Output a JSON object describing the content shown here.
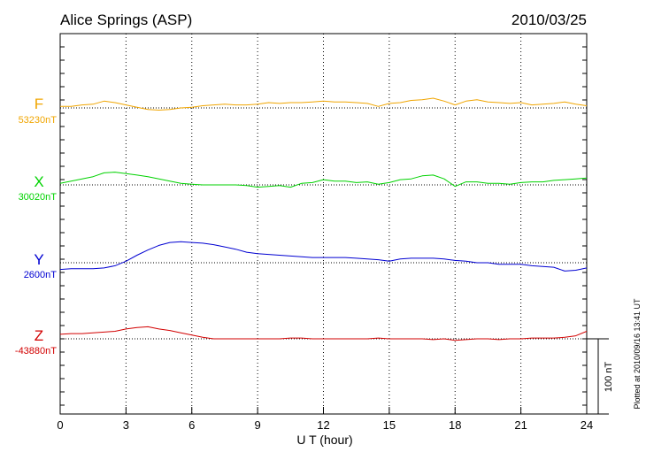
{
  "header": {
    "station": "Alice Springs (ASP)",
    "date": "2010/03/25"
  },
  "footer": {
    "plotted_note": "Plotted at 2010/09/16 13:41 UT"
  },
  "scale_bar": {
    "label": "100 nT",
    "value_nT": 100
  },
  "colors": {
    "F": "#f0a500",
    "X": "#00d200",
    "Y": "#0000d2",
    "Z": "#d20000",
    "frame": "#000000",
    "grid": "#000000"
  },
  "chart_data": {
    "type": "line",
    "title": "Alice Springs (ASP)",
    "xlabel": "U T (hour)",
    "ylabel": "",
    "xlim": [
      0,
      24
    ],
    "xticks": [
      0,
      3,
      6,
      9,
      12,
      15,
      18,
      21,
      24
    ],
    "xtick_labels": [
      "0",
      "3",
      "6",
      "9",
      "12",
      "15",
      "18",
      "21",
      "24"
    ],
    "ylim_nT_per_panel": [
      -100,
      100
    ],
    "grid": true,
    "legend": "left",
    "series": [
      {
        "name": "F",
        "baseline_label": "53230nT",
        "baseline_nT": 53230,
        "x": [
          0,
          0.5,
          1,
          1.5,
          2,
          2.5,
          3,
          3.5,
          4,
          4.5,
          5,
          5.5,
          6,
          6.5,
          7,
          7.5,
          8,
          8.5,
          9,
          9.5,
          10,
          10.5,
          11,
          11.5,
          12,
          12.5,
          13,
          13.5,
          14,
          14.5,
          15,
          15.5,
          16,
          16.5,
          17,
          17.5,
          18,
          18.5,
          19,
          19.5,
          20,
          20.5,
          21,
          21.5,
          22,
          22.5,
          23,
          23.5,
          24
        ],
        "values": [
          2,
          2,
          4,
          5,
          9,
          7,
          4,
          1,
          -2,
          -3,
          -2,
          0,
          1,
          3,
          4,
          5,
          4,
          4,
          5,
          7,
          6,
          7,
          7,
          8,
          9,
          8,
          8,
          7,
          6,
          2,
          6,
          7,
          10,
          11,
          13,
          9,
          4,
          9,
          11,
          8,
          7,
          6,
          7,
          4,
          5,
          6,
          8,
          5,
          3
        ]
      },
      {
        "name": "X",
        "baseline_label": "30020nT",
        "baseline_nT": 30020,
        "x": [
          0,
          0.5,
          1,
          1.5,
          2,
          2.5,
          3,
          3.5,
          4,
          4.5,
          5,
          5.5,
          6,
          6.5,
          7,
          7.5,
          8,
          8.5,
          9,
          9.5,
          10,
          10.5,
          11,
          11.5,
          12,
          12.5,
          13,
          13.5,
          14,
          14.5,
          15,
          15.5,
          16,
          16.5,
          17,
          17.5,
          18,
          18.5,
          19,
          19.5,
          20,
          20.5,
          21,
          21.5,
          22,
          22.5,
          23,
          23.5,
          24
        ],
        "values": [
          2,
          5,
          8,
          11,
          16,
          17,
          15,
          13,
          11,
          8,
          5,
          2,
          1,
          0,
          0,
          0,
          0,
          -1,
          -3,
          -2,
          -1,
          -3,
          2,
          3,
          7,
          5,
          5,
          3,
          4,
          1,
          3,
          7,
          8,
          12,
          13,
          8,
          -2,
          4,
          4,
          2,
          2,
          1,
          3,
          4,
          4,
          6,
          7,
          8,
          9
        ]
      },
      {
        "name": "Y",
        "baseline_label": "2600nT",
        "baseline_nT": 2600,
        "x": [
          0,
          0.5,
          1,
          1.5,
          2,
          2.5,
          3,
          3.5,
          4,
          4.5,
          5,
          5.5,
          6,
          6.5,
          7,
          7.5,
          8,
          8.5,
          9,
          9.5,
          10,
          10.5,
          11,
          11.5,
          12,
          12.5,
          13,
          13.5,
          14,
          14.5,
          15,
          15.5,
          16,
          16.5,
          17,
          17.5,
          18,
          18.5,
          19,
          19.5,
          20,
          20.5,
          21,
          21.5,
          22,
          22.5,
          23,
          23.5,
          24
        ],
        "values": [
          -9,
          -8,
          -8,
          -8,
          -7,
          -4,
          2,
          10,
          17,
          23,
          27,
          28,
          27,
          26,
          24,
          21,
          18,
          14,
          12,
          11,
          10,
          9,
          8,
          7,
          7,
          7,
          7,
          6,
          5,
          4,
          2,
          5,
          6,
          6,
          6,
          5,
          3,
          2,
          0,
          0,
          -2,
          -2,
          -2,
          -4,
          -5,
          -6,
          -11,
          -10,
          -7
        ]
      },
      {
        "name": "Z",
        "baseline_label": "-43880nT",
        "baseline_nT": -43880,
        "x": [
          0,
          0.5,
          1,
          1.5,
          2,
          2.5,
          3,
          3.5,
          4,
          4.5,
          5,
          5.5,
          6,
          6.5,
          7,
          7.5,
          8,
          8.5,
          9,
          9.5,
          10,
          10.5,
          11,
          11.5,
          12,
          12.5,
          13,
          13.5,
          14,
          14.5,
          15,
          15.5,
          16,
          16.5,
          17,
          17.5,
          18,
          18.5,
          19,
          19.5,
          20,
          20.5,
          21,
          21.5,
          22,
          22.5,
          23,
          23.5,
          24
        ],
        "values": [
          6,
          7,
          7,
          8,
          9,
          10,
          13,
          15,
          16,
          13,
          11,
          8,
          5,
          2,
          0,
          0,
          0,
          0,
          0,
          0,
          0,
          1,
          1,
          0,
          0,
          0,
          0,
          0,
          0,
          1,
          0,
          0,
          0,
          0,
          -1,
          0,
          -2,
          -1,
          0,
          0,
          -1,
          0,
          0,
          1,
          1,
          1,
          2,
          4,
          10
        ]
      }
    ]
  }
}
